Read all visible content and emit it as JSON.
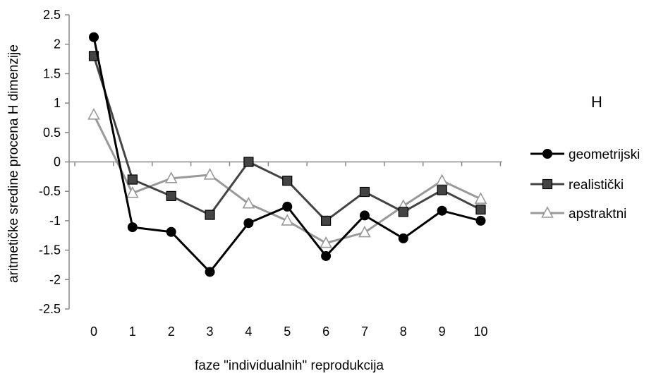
{
  "chart_data": {
    "type": "line",
    "title": "H",
    "xlabel": "faze \"individualnih\" reprodukcija",
    "ylabel": "aritmetičke sredine procena H dimenzije",
    "categories": [
      "0",
      "1",
      "2",
      "3",
      "4",
      "5",
      "6",
      "7",
      "8",
      "9",
      "10"
    ],
    "ylim": [
      -2.5,
      2.5
    ],
    "yticks": [
      "2.5",
      "2",
      "1.5",
      "1",
      "0.5",
      "0",
      "-0.5",
      "-1",
      "-1.5",
      "-2",
      "-2.5"
    ],
    "ytick_values": [
      2.5,
      2,
      1.5,
      1,
      0.5,
      0,
      -0.5,
      -1,
      -1.5,
      -2,
      -2.5
    ],
    "grid": false,
    "legend_position": "right",
    "series": [
      {
        "name": "geometrijski",
        "marker": "circle",
        "color": "#000000",
        "values": [
          2.12,
          -1.11,
          -1.19,
          -1.87,
          -1.04,
          -0.76,
          -1.6,
          -0.91,
          -1.3,
          -0.83,
          -1.0
        ]
      },
      {
        "name": "realistički",
        "marker": "square",
        "color": "#444444",
        "values": [
          1.8,
          -0.3,
          -0.58,
          -0.9,
          0.0,
          -0.32,
          -1.0,
          -0.51,
          -0.85,
          -0.48,
          -0.81
        ]
      },
      {
        "name": "apstraktni",
        "marker": "triangle",
        "color": "#999999",
        "values": [
          0.8,
          -0.53,
          -0.28,
          -0.22,
          -0.71,
          -1.0,
          -1.38,
          -1.2,
          -0.75,
          -0.32,
          -0.63
        ]
      }
    ]
  }
}
